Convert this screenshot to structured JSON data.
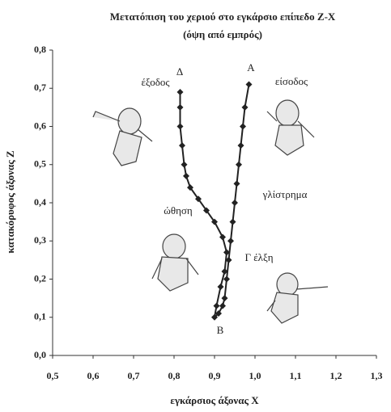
{
  "chart_data": {
    "type": "line",
    "title": "Μετατόπιση του χεριού στο εγκάρσιο επίπεδο Z-X",
    "subtitle": "(όψη από εμπρός)",
    "x_label": "εγκάρσιος άξονας X",
    "y_label": "κατακόρυφος άξονας Z",
    "annotations": [
      "Α",
      "είσοδος",
      "Δ",
      "έξοδος",
      "γλίστρημα",
      "ώθηση",
      "Γ έλξη",
      "Β"
    ],
    "color": "#222222",
    "x": [
      0.985,
      0.975,
      0.97,
      0.965,
      0.96,
      0.955,
      0.95,
      0.945,
      0.94,
      0.935,
      0.93,
      0.925,
      0.92,
      0.91,
      0.9,
      0.905,
      0.915,
      0.925,
      0.93,
      0.92,
      0.9,
      0.88,
      0.86,
      0.84,
      0.83,
      0.825,
      0.82,
      0.815,
      0.815,
      0.815
    ],
    "values": [
      0.71,
      0.65,
      0.6,
      0.55,
      0.5,
      0.45,
      0.4,
      0.35,
      0.3,
      0.25,
      0.2,
      0.15,
      0.13,
      0.11,
      0.1,
      0.13,
      0.18,
      0.22,
      0.27,
      0.31,
      0.35,
      0.38,
      0.41,
      0.44,
      0.47,
      0.5,
      0.55,
      0.6,
      0.65,
      0.69
    ],
    "xlim": [
      0.5,
      1.3
    ],
    "ylim": [
      0.0,
      0.8
    ],
    "xticks": [
      {
        "value": 0.5,
        "label": "0,5"
      },
      {
        "value": 0.6,
        "label": "0,6"
      },
      {
        "value": 0.7,
        "label": "0,7"
      },
      {
        "value": 0.8,
        "label": "0,8"
      },
      {
        "value": 0.9,
        "label": "0,9"
      },
      {
        "value": 1.0,
        "label": "1,0"
      },
      {
        "value": 1.1,
        "label": "1,1"
      },
      {
        "value": 1.2,
        "label": "1,2"
      },
      {
        "value": 1.3,
        "label": "1,3"
      }
    ],
    "yticks": [
      {
        "value": 0.0,
        "label": "0,0"
      },
      {
        "value": 0.1,
        "label": "0,1"
      },
      {
        "value": 0.2,
        "label": "0,2"
      },
      {
        "value": 0.3,
        "label": "0,3"
      },
      {
        "value": 0.4,
        "label": "0,4"
      },
      {
        "value": 0.5,
        "label": "0,5"
      },
      {
        "value": 0.6,
        "label": "0,6"
      },
      {
        "value": 0.7,
        "label": "0,7"
      },
      {
        "value": 0.8,
        "label": "0,8"
      }
    ]
  }
}
